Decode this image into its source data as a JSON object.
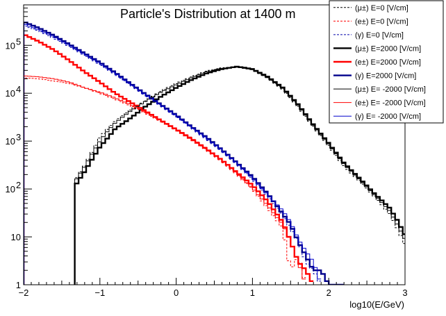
{
  "chart_data": {
    "type": "line",
    "title": "Particle's Distribution at 1400 m",
    "xlabel": "log10(E/GeV)",
    "ylabel": "",
    "xlim": [
      -2,
      3
    ],
    "ylim": [
      1,
      700000
    ],
    "yscale": "log",
    "x_ticks": [
      "−2",
      "−1",
      "0",
      "1",
      "2",
      "3"
    ],
    "y_ticks": [
      {
        "label": "1",
        "value": 1
      },
      {
        "label": "10",
        "value": 10
      },
      {
        "label": "10",
        "sup": "2",
        "value": 100
      },
      {
        "label": "10",
        "sup": "3",
        "value": 1000
      },
      {
        "label": "10",
        "sup": "4",
        "value": 10000
      },
      {
        "label": "10",
        "sup": "5",
        "value": 100000
      }
    ],
    "legend_position": "top-right",
    "series": [
      {
        "name": "(μ±) E=0 [V/cm]",
        "color": "#000000",
        "style": "dashed",
        "width": 1,
        "points": [
          [
            -1.33,
            0
          ],
          [
            -1.32,
            160
          ],
          [
            -1.2,
            310
          ],
          [
            -1.1,
            600
          ],
          [
            -1.0,
            1200
          ],
          [
            -0.9,
            1800
          ],
          [
            -0.8,
            2600
          ],
          [
            -0.6,
            4500
          ],
          [
            -0.4,
            7000
          ],
          [
            -0.2,
            11000
          ],
          [
            0.0,
            16000
          ],
          [
            0.2,
            22000
          ],
          [
            0.4,
            29000
          ],
          [
            0.6,
            34000
          ],
          [
            0.8,
            35000
          ],
          [
            1.0,
            31000
          ],
          [
            1.2,
            21000
          ],
          [
            1.4,
            12000
          ],
          [
            1.6,
            5200
          ],
          [
            1.8,
            2000
          ],
          [
            2.0,
            800
          ],
          [
            2.2,
            300
          ],
          [
            2.4,
            150
          ],
          [
            2.6,
            70
          ],
          [
            2.8,
            30
          ],
          [
            2.9,
            15
          ],
          [
            3.0,
            7
          ]
        ]
      },
      {
        "name": "(e±) E=0 [V/cm]",
        "color": "#ff0000",
        "style": "dashed",
        "width": 1,
        "points": [
          [
            -2.0,
            21000
          ],
          [
            -1.8,
            20000
          ],
          [
            -1.6,
            18000
          ],
          [
            -1.4,
            16000
          ],
          [
            -1.2,
            13000
          ],
          [
            -1.0,
            10000
          ],
          [
            -0.8,
            7500
          ],
          [
            -0.6,
            5500
          ],
          [
            -0.4,
            3800
          ],
          [
            -0.2,
            2600
          ],
          [
            0.0,
            1700
          ],
          [
            0.2,
            1100
          ],
          [
            0.4,
            650
          ],
          [
            0.6,
            380
          ],
          [
            0.8,
            200
          ],
          [
            1.0,
            100
          ],
          [
            1.2,
            40
          ],
          [
            1.4,
            15
          ],
          [
            1.45,
            5
          ],
          [
            1.5,
            2
          ],
          [
            1.6,
            4
          ],
          [
            1.7,
            1
          ]
        ]
      },
      {
        "name": "(γ) E=0 [V/cm]",
        "color": "#0000aa",
        "style": "dashed",
        "width": 1,
        "points": [
          [
            -2.0,
            260000
          ],
          [
            -1.8,
            200000
          ],
          [
            -1.6,
            140000
          ],
          [
            -1.4,
            95000
          ],
          [
            -1.2,
            62000
          ],
          [
            -1.0,
            40000
          ],
          [
            -0.8,
            25000
          ],
          [
            -0.6,
            15000
          ],
          [
            -0.4,
            9000
          ],
          [
            -0.2,
            5500
          ],
          [
            0.0,
            3300
          ],
          [
            0.2,
            1900
          ],
          [
            0.4,
            1100
          ],
          [
            0.6,
            620
          ],
          [
            0.8,
            330
          ],
          [
            1.0,
            160
          ],
          [
            1.2,
            70
          ],
          [
            1.4,
            28
          ],
          [
            1.5,
            15
          ],
          [
            1.6,
            8
          ],
          [
            1.7,
            3
          ],
          [
            1.8,
            2
          ],
          [
            1.9,
            1
          ]
        ]
      },
      {
        "name": "(μ±) E=2000 [V/cm]",
        "color": "#000000",
        "style": "solid",
        "width": 2.4,
        "points": [
          [
            -1.33,
            0
          ],
          [
            -1.32,
            120
          ],
          [
            -1.2,
            230
          ],
          [
            -1.1,
            420
          ],
          [
            -1.0,
            750
          ],
          [
            -0.9,
            1150
          ],
          [
            -0.8,
            1800
          ],
          [
            -0.6,
            3000
          ],
          [
            -0.4,
            5300
          ],
          [
            -0.2,
            8500
          ],
          [
            0.0,
            13000
          ],
          [
            0.2,
            19000
          ],
          [
            0.4,
            26000
          ],
          [
            0.6,
            32000
          ],
          [
            0.8,
            36000
          ],
          [
            1.0,
            32000
          ],
          [
            1.2,
            22000
          ],
          [
            1.4,
            13000
          ],
          [
            1.6,
            5800
          ],
          [
            1.8,
            2200
          ],
          [
            2.0,
            900
          ],
          [
            2.2,
            350
          ],
          [
            2.4,
            170
          ],
          [
            2.6,
            80
          ],
          [
            2.8,
            40
          ],
          [
            2.9,
            22
          ],
          [
            3.0,
            11
          ]
        ]
      },
      {
        "name": "(e±) E=2000 [V/cm]",
        "color": "#ff0000",
        "style": "solid",
        "width": 2.4,
        "points": [
          [
            -2.0,
            170000
          ],
          [
            -1.8,
            120000
          ],
          [
            -1.6,
            80000
          ],
          [
            -1.4,
            48000
          ],
          [
            -1.2,
            28000
          ],
          [
            -1.0,
            17000
          ],
          [
            -0.8,
            10000
          ],
          [
            -0.6,
            6500
          ],
          [
            -0.4,
            4200
          ],
          [
            -0.2,
            2700
          ],
          [
            0.0,
            1750
          ],
          [
            0.2,
            1100
          ],
          [
            0.4,
            680
          ],
          [
            0.6,
            400
          ],
          [
            0.8,
            220
          ],
          [
            1.0,
            120
          ],
          [
            1.2,
            55
          ],
          [
            1.4,
            20
          ],
          [
            1.5,
            8
          ],
          [
            1.6,
            3
          ],
          [
            1.7,
            2
          ],
          [
            1.8,
            1
          ]
        ]
      },
      {
        "name": "(γ) E=2000 [V/cm]",
        "color": "#00008b",
        "style": "solid",
        "width": 2.4,
        "points": [
          [
            -2.0,
            310000
          ],
          [
            -1.8,
            230000
          ],
          [
            -1.6,
            160000
          ],
          [
            -1.4,
            105000
          ],
          [
            -1.2,
            68000
          ],
          [
            -1.0,
            44000
          ],
          [
            -0.8,
            27000
          ],
          [
            -0.6,
            16000
          ],
          [
            -0.4,
            9500
          ],
          [
            -0.2,
            5800
          ],
          [
            0.0,
            3500
          ],
          [
            0.2,
            2000
          ],
          [
            0.4,
            1200
          ],
          [
            0.6,
            660
          ],
          [
            0.8,
            350
          ],
          [
            1.0,
            180
          ],
          [
            1.2,
            80
          ],
          [
            1.4,
            30
          ],
          [
            1.5,
            18
          ],
          [
            1.6,
            8
          ],
          [
            1.7,
            4
          ],
          [
            1.8,
            2
          ],
          [
            1.9,
            2
          ],
          [
            2.0,
            1
          ],
          [
            2.1,
            1
          ],
          [
            2.2,
            1
          ]
        ]
      },
      {
        "name": "(μ±) E= -2000 [V/cm]",
        "color": "#000000",
        "style": "solid",
        "width": 1,
        "points": [
          [
            -1.33,
            0
          ],
          [
            -1.32,
            150
          ],
          [
            -1.2,
            290
          ],
          [
            -1.1,
            550
          ],
          [
            -1.0,
            1000
          ],
          [
            -0.9,
            1600
          ],
          [
            -0.8,
            2400
          ],
          [
            -0.6,
            4200
          ],
          [
            -0.4,
            6800
          ],
          [
            -0.2,
            10500
          ],
          [
            0.0,
            15000
          ],
          [
            0.2,
            21000
          ],
          [
            0.4,
            28000
          ],
          [
            0.6,
            33000
          ],
          [
            0.8,
            35000
          ],
          [
            1.0,
            31000
          ],
          [
            1.2,
            21000
          ],
          [
            1.4,
            12500
          ],
          [
            1.6,
            5500
          ],
          [
            1.8,
            2100
          ],
          [
            2.0,
            850
          ],
          [
            2.2,
            330
          ],
          [
            2.4,
            160
          ],
          [
            2.6,
            75
          ],
          [
            2.8,
            35
          ],
          [
            2.9,
            18
          ],
          [
            3.0,
            9
          ]
        ]
      },
      {
        "name": "(e±) E= -2000 [V/cm]",
        "color": "#ff0000",
        "style": "solid",
        "width": 1,
        "points": [
          [
            -2.0,
            23000
          ],
          [
            -1.8,
            22000
          ],
          [
            -1.6,
            20000
          ],
          [
            -1.4,
            17000
          ],
          [
            -1.2,
            13000
          ],
          [
            -1.0,
            10500
          ],
          [
            -0.8,
            8000
          ],
          [
            -0.6,
            5800
          ],
          [
            -0.4,
            4000
          ],
          [
            -0.2,
            2700
          ],
          [
            0.0,
            1800
          ],
          [
            0.2,
            1150
          ],
          [
            0.4,
            700
          ],
          [
            0.6,
            400
          ],
          [
            0.8,
            210
          ],
          [
            1.0,
            105
          ],
          [
            1.2,
            45
          ],
          [
            1.4,
            18
          ],
          [
            1.5,
            8
          ],
          [
            1.6,
            3
          ],
          [
            1.7,
            1
          ]
        ]
      },
      {
        "name": "(γ) E= -2000 [V/cm]",
        "color": "#0000cc",
        "style": "solid",
        "width": 1,
        "points": [
          [
            -2.0,
            280000
          ],
          [
            -1.8,
            210000
          ],
          [
            -1.6,
            150000
          ],
          [
            -1.4,
            100000
          ],
          [
            -1.2,
            65000
          ],
          [
            -1.0,
            42000
          ],
          [
            -0.8,
            26000
          ],
          [
            -0.6,
            15500
          ],
          [
            -0.4,
            9200
          ],
          [
            -0.2,
            5600
          ],
          [
            0.0,
            3400
          ],
          [
            0.2,
            1950
          ],
          [
            0.4,
            1150
          ],
          [
            0.6,
            640
          ],
          [
            0.8,
            340
          ],
          [
            1.0,
            170
          ],
          [
            1.2,
            75
          ],
          [
            1.4,
            35
          ],
          [
            1.5,
            20
          ],
          [
            1.6,
            9
          ],
          [
            1.7,
            5
          ],
          [
            1.8,
            3
          ],
          [
            1.9,
            1
          ]
        ]
      }
    ]
  }
}
